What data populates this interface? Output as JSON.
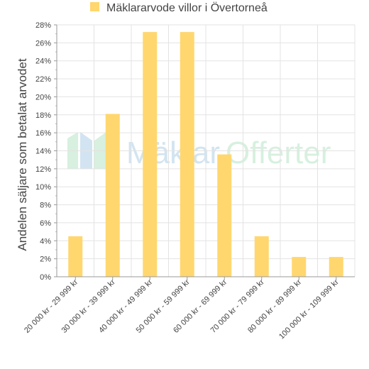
{
  "brand": {
    "watermark_part1": "Mäklar",
    "watermark_part2": "Offerter",
    "color_blue": "#7fb3d9",
    "color_green": "#8fd6a6"
  },
  "chart_data": {
    "type": "bar",
    "legend": "Mäklararvode villor i Övertorneå",
    "legend_position": "top-center",
    "ylabel": "Andelen säljare som betalat arvodet",
    "xlabel": "",
    "ylim": [
      0,
      28
    ],
    "y_unit": "%",
    "grid": true,
    "bar_color": "#ffd76e",
    "categories": [
      "20 000 kr - 29 999 kr",
      "30 000 kr - 39 999 kr",
      "40 000 kr - 49 999 kr",
      "50 000 kr - 59 999 kr",
      "60 000 kr - 69 999 kr",
      "70 000 kr - 79 999 kr",
      "80 000 kr - 89 999 kr",
      "100 000 kr - 109 999 kr"
    ],
    "values": [
      4.5,
      18.1,
      27.2,
      27.2,
      13.6,
      4.5,
      2.2,
      2.2
    ],
    "yticks": [
      "0%",
      "2%",
      "4%",
      "6%",
      "8%",
      "10%",
      "12%",
      "14%",
      "16%",
      "18%",
      "20%",
      "22%",
      "24%",
      "26%",
      "28%"
    ]
  }
}
